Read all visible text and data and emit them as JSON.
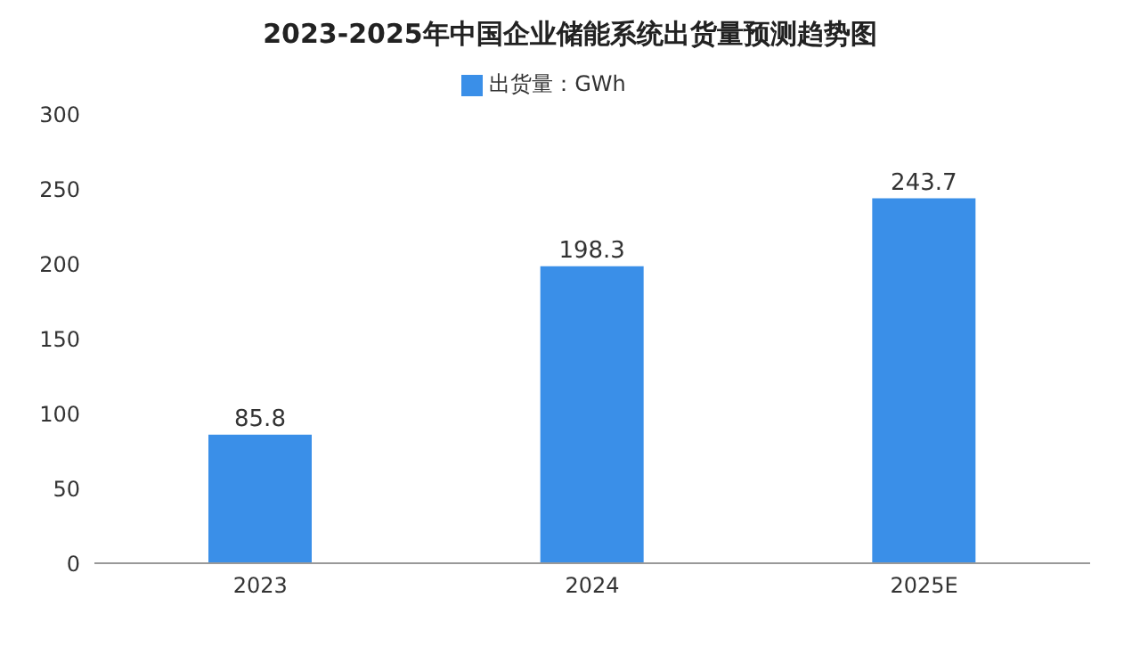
{
  "chart_data": {
    "type": "bar",
    "title": "2023-2025年中国企业储能系统出货量预测趋势图",
    "categories": [
      "2023",
      "2024",
      "2025E"
    ],
    "series": [
      {
        "name": "出货量：GWh",
        "color": "#3a8fe8",
        "values": [
          85.8,
          198.3,
          243.7
        ]
      }
    ],
    "ylim": [
      0,
      300
    ],
    "yticks": [
      0,
      50,
      100,
      150,
      200,
      250,
      300
    ],
    "grid": false,
    "legend": "top",
    "data_labels": true
  }
}
